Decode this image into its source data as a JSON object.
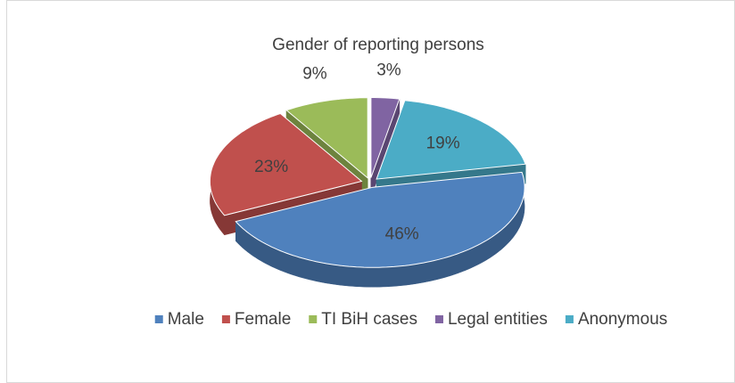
{
  "chart_data": {
    "type": "pie",
    "title": "Gender of reporting persons",
    "categories": [
      "Male",
      "Female",
      "TI BiH cases",
      "Legal entities",
      "Anonymous"
    ],
    "values": [
      46,
      23,
      9,
      3,
      19
    ],
    "value_labels": [
      "46%",
      "23%",
      "9%",
      "3%",
      "19%"
    ],
    "colors": [
      "#4f81bd",
      "#c0504d",
      "#9bbb59",
      "#8064a2",
      "#4bacc6"
    ],
    "legend": "bottom"
  }
}
